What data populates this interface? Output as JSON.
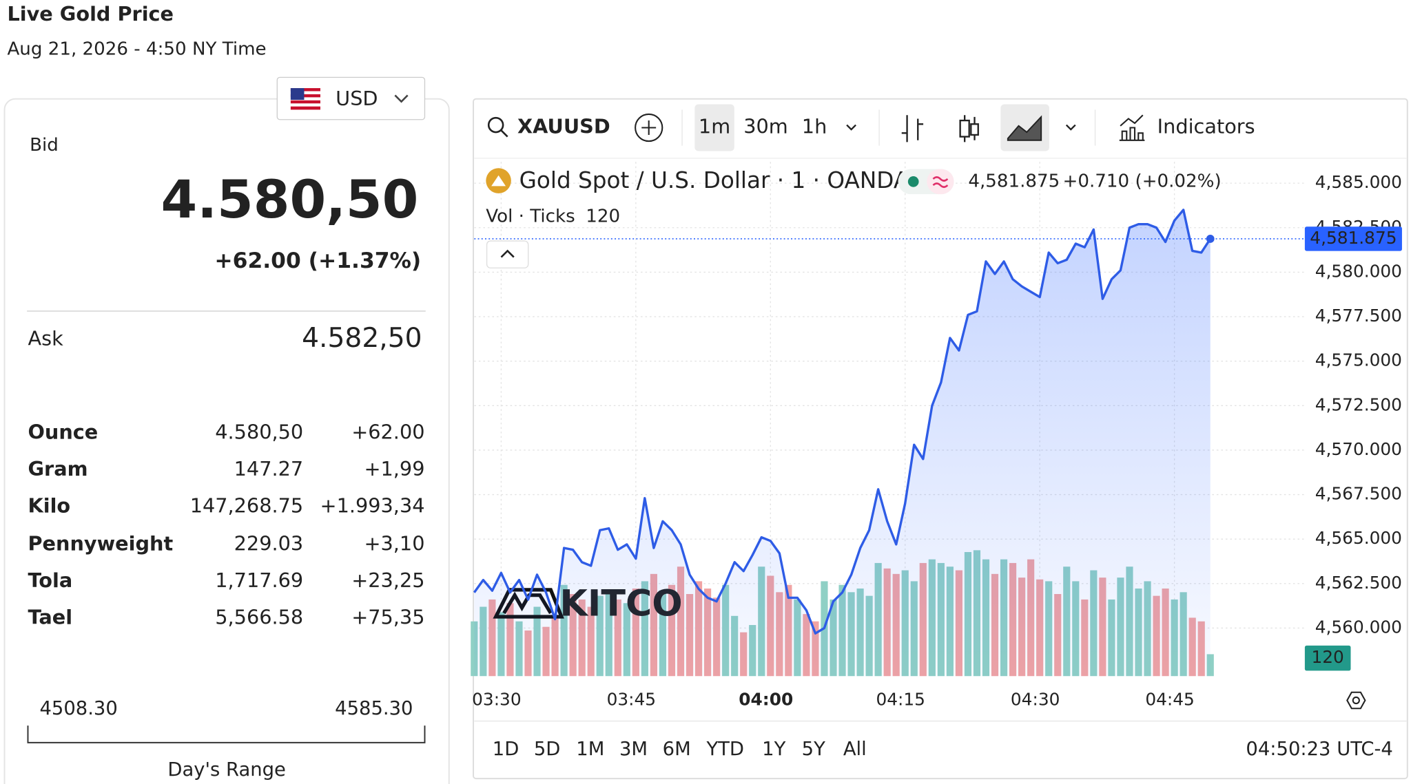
{
  "header": {
    "title": "Live Gold Price",
    "subtitle": "Aug 21, 2026 - 4:50 NY Time"
  },
  "price_panel": {
    "currency": "USD",
    "bid_label": "Bid",
    "bid": "4.580,50",
    "change": "+62.00 (+1.37%)",
    "ask_label": "Ask",
    "ask": "4.582,50",
    "rows": [
      [
        "Ounce",
        "4.580,50",
        "+62.00"
      ],
      [
        "Gram",
        "147.27",
        "+1,99"
      ],
      [
        "Kilo",
        "147,268.75",
        "+1.993,34"
      ],
      [
        "Pennyweight",
        "229.03",
        "+3,10"
      ],
      [
        "Tola",
        "1,717.69",
        "+23,25"
      ],
      [
        "Tael",
        "5,566.58",
        "+75,35"
      ]
    ],
    "range": {
      "low": "4508.30",
      "high": "4585.30",
      "label": "Day's Range"
    }
  },
  "toolbar": {
    "symbol": "XAUUSD",
    "intervals": [
      "1m",
      "30m",
      "1h"
    ],
    "indicators": "Indicators"
  },
  "chart_data": {
    "type": "line",
    "title": "Gold Spot / U.S. Dollar · 1 · OANDA",
    "last_price_label": "4,581.875",
    "last_change": "+0.710 (+0.02%)",
    "watermark": "KITCO",
    "categories": [
      null,
      null,
      null,
      "03:30",
      null,
      null,
      null,
      null,
      null,
      null,
      null,
      null,
      null,
      null,
      null,
      null,
      null,
      null,
      "03:45",
      null,
      null,
      null,
      null,
      null,
      null,
      null,
      null,
      null,
      null,
      null,
      null,
      null,
      null,
      "04:00",
      null,
      null,
      null,
      null,
      null,
      null,
      null,
      null,
      null,
      null,
      null,
      null,
      null,
      null,
      "04:15",
      null,
      null,
      null,
      null,
      null,
      null,
      null,
      null,
      null,
      null,
      null,
      null,
      null,
      null,
      "04:30",
      null,
      null,
      null,
      null,
      null,
      null,
      null,
      null,
      null,
      null,
      null,
      null,
      null,
      null,
      "04:45",
      null,
      null,
      null,
      null
    ],
    "values": [
      4562.0,
      4562.7,
      4562.1,
      4563.1,
      4562.0,
      4562.7,
      4561.6,
      4563.0,
      4562.0,
      4560.5,
      4564.5,
      4564.4,
      4563.7,
      4563.5,
      4565.5,
      4565.6,
      4564.4,
      4564.7,
      4563.9,
      4567.3,
      4564.5,
      4566.0,
      4565.5,
      4564.7,
      4563.0,
      4562.2,
      4561.7,
      4561.5,
      4562.5,
      4563.7,
      4563.2,
      4564.1,
      4565.1,
      4564.9,
      4564.2,
      4561.7,
      4561.7,
      4561.0,
      4559.7,
      4560.0,
      4561.5,
      4562.0,
      4563.0,
      4564.5,
      4565.5,
      4567.8,
      4566.0,
      4564.7,
      4567.0,
      4570.3,
      4569.5,
      4572.5,
      4573.8,
      4576.3,
      4575.6,
      4577.6,
      4577.8,
      4580.6,
      4579.9,
      4580.6,
      4579.6,
      4579.2,
      4578.9,
      4578.6,
      4581.1,
      4580.5,
      4580.7,
      4581.6,
      4581.4,
      4582.4,
      4578.5,
      4579.6,
      4580.1,
      4582.5,
      4582.7,
      4582.7,
      4582.5,
      4581.7,
      4582.9,
      4583.5,
      4581.2,
      4581.1,
      4581.875
    ],
    "color": "#2e5ce6",
    "volume": {
      "label": "Vol · Ticks",
      "up_color": "#8fd0c5",
      "down_color": "#f1a3a3",
      "badge_color": "#22998a",
      "values": [
        300,
        380,
        420,
        350,
        400,
        300,
        250,
        380,
        270,
        330,
        500,
        450,
        420,
        380,
        440,
        470,
        420,
        400,
        480,
        520,
        560,
        470,
        500,
        600,
        450,
        520,
        480,
        430,
        500,
        330,
        240,
        280,
        600,
        550,
        460,
        500,
        420,
        340,
        300,
        520,
        420,
        500,
        460,
        480,
        440,
        620,
        590,
        560,
        580,
        520,
        620,
        640,
        620,
        600,
        580,
        680,
        690,
        640,
        560,
        640,
        620,
        540,
        640,
        530,
        520,
        450,
        600,
        520,
        420,
        580,
        540,
        420,
        540,
        600,
        480,
        520,
        440,
        480,
        420,
        460,
        320,
        300,
        120
      ]
    },
    "ylim": [
      4557.3,
      4586.2
    ],
    "yticks": [
      {
        "value": 4560,
        "label": "4,560.000"
      },
      {
        "value": 4562.5,
        "label": "4,562.500"
      },
      {
        "value": 4565,
        "label": "4,565.000"
      },
      {
        "value": 4567.5,
        "label": "4,567.500"
      },
      {
        "value": 4570,
        "label": "4,570.000"
      },
      {
        "value": 4572.5,
        "label": "4,572.500"
      },
      {
        "value": 4575,
        "label": "4,575.000"
      },
      {
        "value": 4577.5,
        "label": "4,577.500"
      },
      {
        "value": 4580,
        "label": "4,580.000"
      },
      {
        "value": 4582.5,
        "label": "4,582.500"
      },
      {
        "value": 4585,
        "label": "4,585.000"
      }
    ],
    "grid": true,
    "periods": [
      "1D",
      "5D",
      "1M",
      "3M",
      "6M",
      "YTD",
      "1Y",
      "5Y",
      "All"
    ],
    "clock": "04:50:23 UTC-4"
  }
}
